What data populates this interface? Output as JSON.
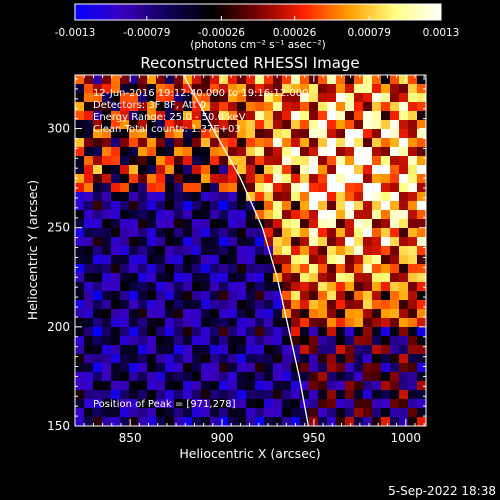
{
  "colorbar": {
    "tick_labels": [
      "-0.0013",
      "-0.00079",
      "-0.00026",
      "0.00026",
      "0.00079",
      "0.0013"
    ],
    "unit_label": "(photons cm⁻² s⁻¹ asec⁻²)",
    "range": [
      -0.0013,
      0.0013
    ],
    "colors": [
      "#0000ff",
      "#3a00c0",
      "#10005a",
      "#000000",
      "#7a0000",
      "#ff2000",
      "#ffa000",
      "#ffff80",
      "#ffffff"
    ]
  },
  "chart_data": {
    "type": "heatmap",
    "title": "Reconstructed RHESSI Image",
    "xlabel": "Heliocentric X (arcsec)",
    "ylabel": "Heliocentric Y (arcsec)",
    "xlim": [
      820,
      1011
    ],
    "ylim": [
      150,
      327
    ],
    "x_ticks": [
      850,
      900,
      950,
      1000
    ],
    "y_ticks": [
      150,
      200,
      250,
      300
    ],
    "x_tick_labels": [
      "850",
      "900",
      "950",
      "1000"
    ],
    "y_tick_labels": [
      "150",
      "200",
      "250",
      "300"
    ],
    "annotations": [
      "12-Jun-2016 19:12:40.000 to 19:16:12.000",
      "Detectors: 3F 8F, Att 0",
      "Energy Range: 25.0 - 50.0 keV",
      "Clean     Total counts: 1.37E+03"
    ],
    "peak_label": "Position of Peak = [971,278]",
    "peak": [
      971,
      278
    ],
    "limb_curve": [
      [
        879,
        327
      ],
      [
        895,
        300
      ],
      [
        910,
        275
      ],
      [
        922,
        250
      ],
      [
        930,
        225
      ],
      [
        936,
        200
      ],
      [
        942,
        175
      ],
      [
        947,
        150
      ]
    ],
    "grid": false
  },
  "timestamp": "5-Sep-2022 18:38"
}
